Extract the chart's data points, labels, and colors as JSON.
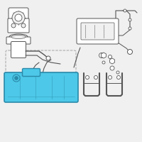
{
  "bg_color": "#f0f0f0",
  "tank_color": "#4dc8e8",
  "tank_stroke": "#2a8aaa",
  "line_color": "#888888",
  "dark_line": "#555555",
  "white": "#ffffff"
}
